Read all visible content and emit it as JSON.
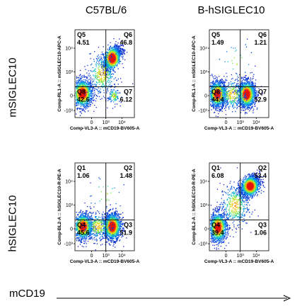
{
  "column_titles": [
    "C57BL/6",
    "B-hSIGLEC10"
  ],
  "row_titles": [
    "mSIGLEC10",
    "hSIGLEC10"
  ],
  "x_arrow_label": "mCD19",
  "colors": {
    "density_low": "#0a1ecc",
    "density_mid": "#18d2c8",
    "density_high": "#f01e0a",
    "gate": "#000000"
  },
  "chart_data": [
    {
      "type": "scatter",
      "subtype": "flow-cytometry-density",
      "panel": "top-left",
      "xlabel": "Comp-VL3-A :: mCD19-BV605-A",
      "ylabel": "Comp-RL1-A :: mSIGLEC10-APC-A",
      "x_ticks": [
        "0",
        "10³",
        "10⁴"
      ],
      "y_ticks": [
        "-10³",
        "0",
        "10³",
        "10⁴"
      ],
      "quadrants": [
        {
          "name": "Q5",
          "value": "4.51"
        },
        {
          "name": "Q6",
          "value": "46.8"
        },
        {
          "name": "Q8",
          "value": "42.6"
        },
        {
          "name": "Q7",
          "value": "6.12"
        }
      ],
      "clusters": [
        {
          "x": 0.12,
          "y": 0.28,
          "sx": 0.085,
          "sy": 0.08,
          "n": 1400
        },
        {
          "x": 0.62,
          "y": 0.68,
          "sx": 0.075,
          "sy": 0.07,
          "n": 1550,
          "corr": 0.55
        },
        {
          "x": 0.45,
          "y": 0.5,
          "sx": 0.12,
          "sy": 0.12,
          "n": 350
        },
        {
          "x": 0.65,
          "y": 0.25,
          "sx": 0.05,
          "sy": 0.05,
          "n": 120
        }
      ]
    },
    {
      "type": "scatter",
      "subtype": "flow-cytometry-density",
      "panel": "top-right",
      "xlabel": "Comp-VL3-A :: mCD19-BV605-A",
      "ylabel": "Comp-RL1-A :: mSIGLEC10-APC-A",
      "x_ticks": [
        "0",
        "10³",
        "10⁴"
      ],
      "y_ticks": [
        "-10³",
        "0",
        "10³",
        "10⁴"
      ],
      "quadrants": [
        {
          "name": "Q5",
          "value": "1.49"
        },
        {
          "name": "Q6",
          "value": "1.21"
        },
        {
          "name": "Q8",
          "value": "44.4"
        },
        {
          "name": "Q7",
          "value": "52.9"
        }
      ],
      "clusters": [
        {
          "x": 0.13,
          "y": 0.27,
          "sx": 0.075,
          "sy": 0.075,
          "n": 1300
        },
        {
          "x": 0.62,
          "y": 0.27,
          "sx": 0.075,
          "sy": 0.075,
          "n": 1500
        },
        {
          "x": 0.38,
          "y": 0.27,
          "sx": 0.12,
          "sy": 0.09,
          "n": 300
        },
        {
          "x": 0.45,
          "y": 0.65,
          "sx": 0.15,
          "sy": 0.12,
          "n": 30
        }
      ]
    },
    {
      "type": "scatter",
      "subtype": "flow-cytometry-density",
      "panel": "bottom-left",
      "xlabel": "Comp-VL3-A :: mCD19-BV605-A",
      "ylabel": "Comp-BL2-A :: hSIGLEC10-R-PE-A",
      "x_ticks": [
        "0",
        "10³",
        "10⁴"
      ],
      "y_ticks": [
        "-10³",
        "0",
        "10³",
        "10⁴"
      ],
      "quadrants": [
        {
          "name": "Q1",
          "value": "1.06"
        },
        {
          "name": "Q2",
          "value": "1.48"
        },
        {
          "name": "Q4",
          "value": "45.6"
        },
        {
          "name": "Q3",
          "value": "51.9"
        }
      ],
      "clusters": [
        {
          "x": 0.13,
          "y": 0.28,
          "sx": 0.08,
          "sy": 0.075,
          "n": 1300
        },
        {
          "x": 0.62,
          "y": 0.28,
          "sx": 0.075,
          "sy": 0.075,
          "n": 1500
        },
        {
          "x": 0.38,
          "y": 0.28,
          "sx": 0.12,
          "sy": 0.08,
          "n": 300
        },
        {
          "x": 0.5,
          "y": 0.65,
          "sx": 0.15,
          "sy": 0.12,
          "n": 30
        }
      ]
    },
    {
      "type": "scatter",
      "subtype": "flow-cytometry-density",
      "panel": "bottom-right",
      "xlabel": "Comp-VL3-A :: mCD19-BV605-A",
      "ylabel": "Comp-BL2-A :: hSIGLEC10-R-PE-A",
      "x_ticks": [
        "0",
        "10³",
        "10⁴"
      ],
      "y_ticks": [
        "-10³",
        "0",
        "10³",
        "10⁴"
      ],
      "quadrants": [
        {
          "name": "Q1",
          "value": "6.08"
        },
        {
          "name": "Q2",
          "value": "53.4"
        },
        {
          "name": "Q4",
          "value": "39.4"
        },
        {
          "name": "Q3",
          "value": "1.06"
        }
      ],
      "clusters": [
        {
          "x": 0.14,
          "y": 0.27,
          "sx": 0.075,
          "sy": 0.085,
          "n": 1250
        },
        {
          "x": 0.68,
          "y": 0.74,
          "sx": 0.08,
          "sy": 0.06,
          "n": 1500,
          "corr": 0.35
        },
        {
          "x": 0.42,
          "y": 0.52,
          "sx": 0.12,
          "sy": 0.12,
          "n": 380
        }
      ]
    }
  ]
}
